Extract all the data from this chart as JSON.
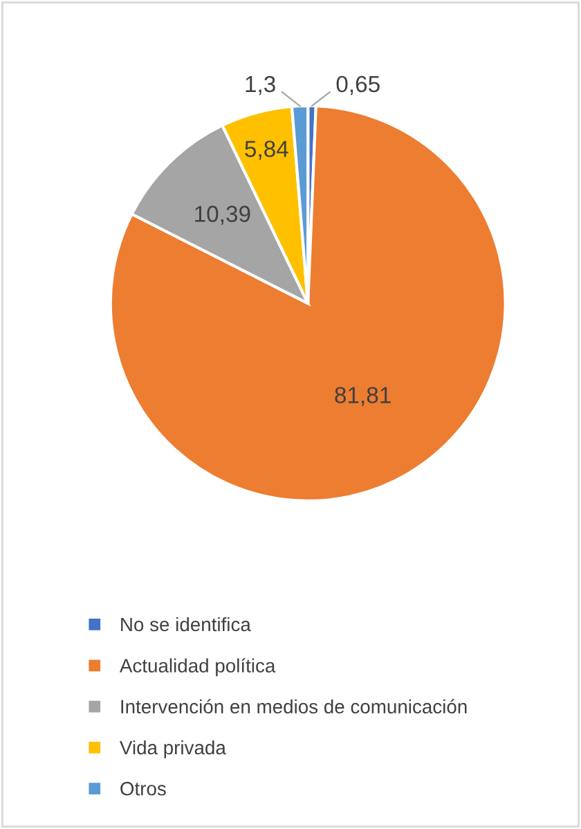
{
  "chart_data": {
    "type": "pie",
    "categories": [
      "No se identifica",
      "Actualidad política",
      "Intervención en medios de comunicación",
      "Vida privada",
      "Otros"
    ],
    "values": [
      0.65,
      81.81,
      10.39,
      5.84,
      1.3
    ],
    "value_labels": [
      "0,65",
      "81,81",
      "10,39",
      "5,84",
      "1,3"
    ],
    "colors": [
      "#4472c4",
      "#ed7d31",
      "#a5a5a5",
      "#ffc000",
      "#5b9bd5"
    ],
    "legend": "bottom"
  }
}
